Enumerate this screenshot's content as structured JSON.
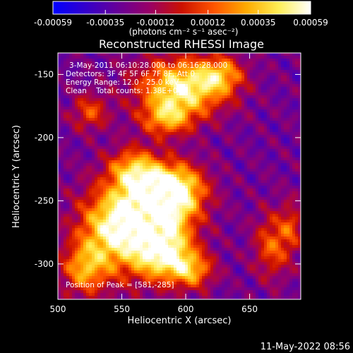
{
  "chart_data": {
    "type": "heatmap",
    "title": "Reconstructed RHESSI Image",
    "xlabel": "Heliocentric X (arcsec)",
    "ylabel": "Heliocentric Y (arcsec)",
    "xlim": [
      500,
      690
    ],
    "ylim": [
      -328,
      -133
    ],
    "x_ticks": [
      500,
      550,
      600,
      650
    ],
    "y_ticks": [
      -150,
      -200,
      -250,
      -300
    ],
    "x_tick_labels": [
      "500",
      "550",
      "600",
      "650"
    ],
    "y_tick_labels": [
      "-150",
      "-200",
      "-250",
      "-300"
    ],
    "colorbar": {
      "range": [
        -0.00059,
        0.00059
      ],
      "tick_values": [
        -0.00059,
        -0.00035,
        -0.00012,
        0.00012,
        0.00035,
        0.00059
      ],
      "tick_labels": [
        "-0.00059",
        "-0.00035",
        "-0.00012",
        "0.00012",
        "0.00035",
        "0.00059"
      ],
      "unit_label": "(photons cm⁻² s⁻¹ asec⁻²)",
      "colormap": [
        "#0000ff",
        "#3300cc",
        "#660099",
        "#990066",
        "#cc1100",
        "#ff5500",
        "#ffaa00",
        "#ffee55",
        "#ffffff"
      ]
    },
    "annotations": {
      "time_range": "3-May-2011 06:10:28.000 to 06:16:28.000",
      "detectors": "Detectors: 3F 4F 5F 6F 7F 8F, Att 0",
      "energy_range": "Energy Range: 12.0 - 25.0 keV",
      "clean_counts": "Clean    Total counts: 1.38E+04",
      "peak": "Position of Peak = [581,-285]"
    },
    "intensity_sources": [
      {
        "x": 582,
        "y": -290,
        "amp": 1.0,
        "sx": 16,
        "sy": 16
      },
      {
        "x": 575,
        "y": -255,
        "amp": 0.9,
        "sx": 22,
        "sy": 18
      },
      {
        "x": 543,
        "y": -275,
        "amp": 0.85,
        "sx": 20,
        "sy": 24
      },
      {
        "x": 592,
        "y": -240,
        "amp": 0.8,
        "sx": 16,
        "sy": 14
      },
      {
        "x": 560,
        "y": -225,
        "amp": 0.65,
        "sx": 14,
        "sy": 12
      },
      {
        "x": 605,
        "y": -305,
        "amp": 0.6,
        "sx": 12,
        "sy": 10
      },
      {
        "x": 520,
        "y": -305,
        "amp": 0.55,
        "sx": 12,
        "sy": 14
      },
      {
        "x": 598,
        "y": -160,
        "amp": 0.95,
        "sx": 24,
        "sy": 16
      },
      {
        "x": 585,
        "y": -185,
        "amp": 0.6,
        "sx": 14,
        "sy": 10
      },
      {
        "x": 628,
        "y": -150,
        "amp": 0.5,
        "sx": 12,
        "sy": 10
      },
      {
        "x": 525,
        "y": -180,
        "amp": 0.45,
        "sx": 10,
        "sy": 10
      },
      {
        "x": 668,
        "y": -285,
        "amp": 0.5,
        "sx": 10,
        "sy": 18
      },
      {
        "x": 683,
        "y": -270,
        "amp": 0.35,
        "sx": 6,
        "sy": 14
      }
    ]
  },
  "footer": {
    "timestamp": "11-May-2022 08:56"
  }
}
